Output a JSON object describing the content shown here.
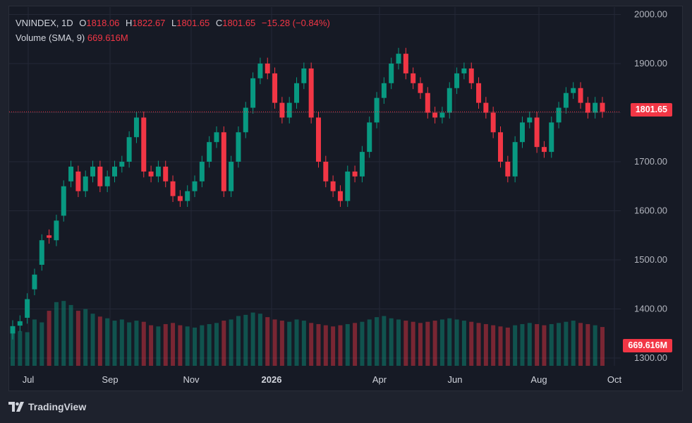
{
  "legend": {
    "symbol": "VNINDEX",
    "interval": "1D",
    "open_label": "O",
    "open": "1818.06",
    "high_label": "H",
    "high": "1822.67",
    "low_label": "L",
    "low": "1801.65",
    "close_label": "C",
    "close": "1801.65",
    "change": "−15.28 (−0.84%)",
    "volume_label": "Volume (SMA, 9)",
    "volume_value": "669.616M"
  },
  "price_tag": "1801.65",
  "volume_tag": "669.616M",
  "brand": "TradingView",
  "chart_data": {
    "type": "candlestick",
    "y_axis": {
      "ticks": [
        "2000.00",
        "1900.00",
        "1800.00",
        "1700.00",
        "1600.00",
        "1500.00",
        "1400.00",
        "1300.00"
      ],
      "range": [
        1300,
        2000
      ]
    },
    "x_axis": {
      "ticks": [
        "Jul",
        "Sep",
        "Nov",
        "2026",
        "Apr",
        "Jun",
        "Aug",
        "Oct"
      ]
    },
    "last_price": 1801.65,
    "last_volume_m": 669.616,
    "colors": {
      "up": "#089981",
      "down": "#f23645",
      "grid": "#242836",
      "axis_text": "#b2b5be"
    },
    "series": [
      {
        "name": "VNINDEX",
        "values": [
          [
            1350,
            1365
          ],
          [
            1366,
            1375
          ],
          [
            1382,
            1420
          ],
          [
            1440,
            1470
          ],
          [
            1490,
            1540
          ],
          [
            1550,
            1545
          ],
          [
            1540,
            1580
          ],
          [
            1590,
            1650
          ],
          [
            1660,
            1690
          ],
          [
            1680,
            1640
          ],
          [
            1640,
            1670
          ],
          [
            1670,
            1690
          ],
          [
            1690,
            1650
          ],
          [
            1650,
            1670
          ],
          [
            1670,
            1690
          ],
          [
            1690,
            1700
          ],
          [
            1700,
            1750
          ],
          [
            1750,
            1790
          ],
          [
            1790,
            1680
          ],
          [
            1680,
            1670
          ],
          [
            1670,
            1690
          ],
          [
            1690,
            1660
          ],
          [
            1660,
            1630
          ],
          [
            1630,
            1620
          ],
          [
            1620,
            1640
          ],
          [
            1640,
            1660
          ],
          [
            1660,
            1700
          ],
          [
            1700,
            1740
          ],
          [
            1740,
            1760
          ],
          [
            1760,
            1640
          ],
          [
            1640,
            1700
          ],
          [
            1700,
            1760
          ],
          [
            1760,
            1810
          ],
          [
            1810,
            1870
          ],
          [
            1870,
            1900
          ],
          [
            1900,
            1880
          ],
          [
            1880,
            1820
          ],
          [
            1820,
            1790
          ],
          [
            1790,
            1820
          ],
          [
            1820,
            1860
          ],
          [
            1860,
            1890
          ],
          [
            1890,
            1790
          ],
          [
            1790,
            1700
          ],
          [
            1700,
            1660
          ],
          [
            1660,
            1640
          ],
          [
            1640,
            1620
          ],
          [
            1620,
            1680
          ],
          [
            1680,
            1670
          ],
          [
            1670,
            1720
          ],
          [
            1720,
            1780
          ],
          [
            1780,
            1830
          ],
          [
            1830,
            1860
          ],
          [
            1860,
            1900
          ],
          [
            1900,
            1920
          ],
          [
            1920,
            1880
          ],
          [
            1880,
            1860
          ],
          [
            1860,
            1840
          ],
          [
            1840,
            1800
          ],
          [
            1800,
            1790
          ],
          [
            1790,
            1800
          ],
          [
            1800,
            1850
          ],
          [
            1850,
            1880
          ],
          [
            1880,
            1890
          ],
          [
            1890,
            1860
          ],
          [
            1860,
            1820
          ],
          [
            1820,
            1800
          ],
          [
            1800,
            1760
          ],
          [
            1760,
            1700
          ],
          [
            1700,
            1670
          ],
          [
            1670,
            1740
          ],
          [
            1740,
            1780
          ],
          [
            1780,
            1790
          ],
          [
            1790,
            1730
          ],
          [
            1730,
            1720
          ],
          [
            1720,
            1780
          ],
          [
            1780,
            1810
          ],
          [
            1810,
            1840
          ],
          [
            1840,
            1850
          ],
          [
            1850,
            1820
          ],
          [
            1820,
            1800
          ],
          [
            1800,
            1820
          ],
          [
            1820,
            1801.65
          ]
        ]
      },
      {
        "name": "Volume",
        "values": [
          62,
          60,
          58,
          80,
          75,
          95,
          110,
          112,
          105,
          95,
          98,
          90,
          85,
          82,
          78,
          80,
          75,
          78,
          76,
          70,
          68,
          72,
          74,
          70,
          68,
          66,
          70,
          72,
          74,
          78,
          80,
          86,
          88,
          92,
          90,
          84,
          80,
          78,
          76,
          80,
          78,
          74,
          72,
          70,
          68,
          70,
          72,
          74,
          76,
          80,
          84,
          86,
          82,
          80,
          78,
          76,
          74,
          76,
          78,
          80,
          82,
          80,
          78,
          76,
          74,
          72,
          70,
          68,
          66,
          70,
          72,
          74,
          72,
          70,
          72,
          74,
          76,
          78,
          74,
          72,
          70,
          67
        ]
      }
    ]
  }
}
